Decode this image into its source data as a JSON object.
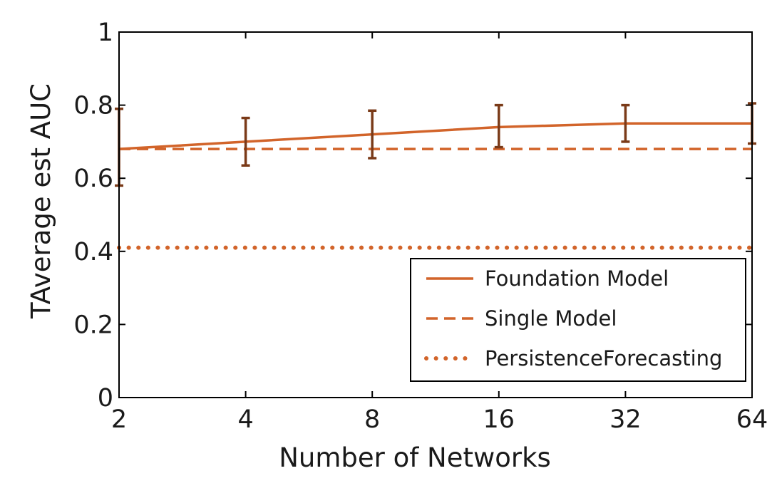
{
  "chart_data": {
    "type": "line",
    "title": "",
    "xlabel": "Number of Networks",
    "ylabel": "TAverage est AUC",
    "x_scale": "log2",
    "x": [
      2,
      4,
      8,
      16,
      32,
      64
    ],
    "x_tick_labels": [
      "2",
      "4",
      "8",
      "16",
      "32",
      "64"
    ],
    "ylim": [
      0,
      1
    ],
    "y_ticks": [
      0,
      0.2,
      0.4,
      0.6,
      0.8,
      1
    ],
    "y_tick_labels": [
      "0",
      "0.2",
      "0.4",
      "0.6",
      "0.8",
      "1"
    ],
    "grid": false,
    "legend_position": "bottom-right",
    "series": [
      {
        "name": "Foundation Model",
        "style": "solid",
        "color": "#D2642A",
        "values": [
          0.68,
          0.7,
          0.72,
          0.74,
          0.75,
          0.75
        ],
        "error_low": [
          0.58,
          0.635,
          0.655,
          0.685,
          0.7,
          0.695
        ],
        "error_high": [
          0.79,
          0.765,
          0.785,
          0.8,
          0.8,
          0.805
        ],
        "error_color": "#7A3A18"
      },
      {
        "name": "Single Model",
        "style": "dashed",
        "color": "#D2642A",
        "values": [
          0.68,
          0.68,
          0.68,
          0.68,
          0.68,
          0.68
        ]
      },
      {
        "name": "PersistenceForecasting",
        "style": "dotted",
        "color": "#D2642A",
        "values": [
          0.41,
          0.41,
          0.41,
          0.41,
          0.41,
          0.41
        ]
      }
    ]
  }
}
